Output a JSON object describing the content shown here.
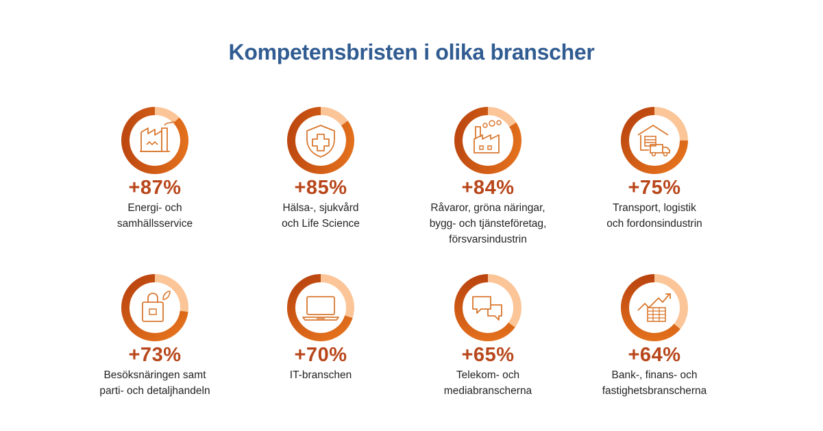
{
  "title": "Kompetensbristen i olika branscher",
  "colors": {
    "title": "#315c92",
    "value": "#b8461a",
    "ring_track": "#fbc598",
    "ring_start": "#b7410e",
    "ring_end": "#e8761e",
    "icon": "#d9772e"
  },
  "chart_data": {
    "type": "donut-grid",
    "title": "Kompetensbristen i olika branscher",
    "unit": "%",
    "items": [
      {
        "value": 87,
        "value_label": "+87%",
        "label": "Energi- och\nsamhällsservice",
        "icon": "factory-icon"
      },
      {
        "value": 85,
        "value_label": "+85%",
        "label": "Hälsa-, sjukvård\noch Life Science",
        "icon": "medical-shield-icon"
      },
      {
        "value": 84,
        "value_label": "+84%",
        "label": "Råvaror, gröna näringar,\nbygg- och tjänsteföretag,\nförsvarsindustrin",
        "icon": "industry-icon"
      },
      {
        "value": 75,
        "value_label": "+75%",
        "label": "Transport, logistik\noch fordonsindustrin",
        "icon": "warehouse-truck-icon"
      },
      {
        "value": 73,
        "value_label": "+73%",
        "label": "Besöksnäringen samt\nparti- och detaljhandeln",
        "icon": "shopping-bag-icon"
      },
      {
        "value": 70,
        "value_label": "+70%",
        "label": "IT-branschen",
        "icon": "laptop-icon"
      },
      {
        "value": 65,
        "value_label": "+65%",
        "label": "Telekom- och\nmediabranscherna",
        "icon": "chat-bubbles-icon"
      },
      {
        "value": 64,
        "value_label": "+64%",
        "label": "Bank-, finans- och\nfastighetsbranscherna",
        "icon": "growth-chart-icon"
      }
    ]
  }
}
